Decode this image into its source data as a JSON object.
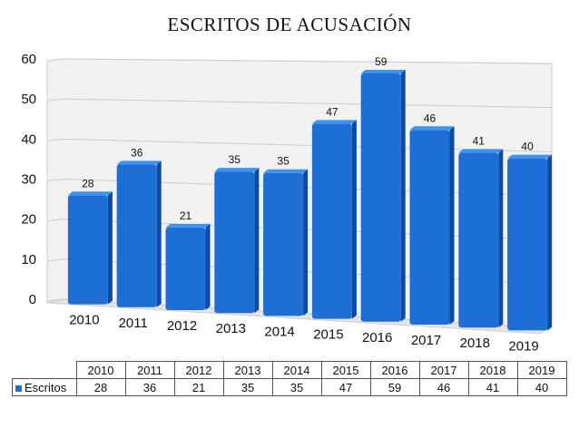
{
  "chart_data": {
    "type": "bar",
    "title": "ESCRITOS DE ACUSACIÓN",
    "categories": [
      "2010",
      "2011",
      "2012",
      "2013",
      "2014",
      "2015",
      "2016",
      "2017",
      "2018",
      "2019"
    ],
    "series": [
      {
        "name": "Escritos",
        "values": [
          28,
          36,
          21,
          35,
          35,
          47,
          59,
          46,
          41,
          40
        ]
      }
    ],
    "ylim": [
      0,
      60
    ],
    "yticks": [
      0,
      10,
      20,
      30,
      40,
      50,
      60
    ],
    "grid": true,
    "data_labels": true,
    "legend": "data-table-below",
    "colors": {
      "bar": "#1d6fd6",
      "bar_top": "#3f92f0",
      "bar_side": "#0b4aa5"
    }
  }
}
